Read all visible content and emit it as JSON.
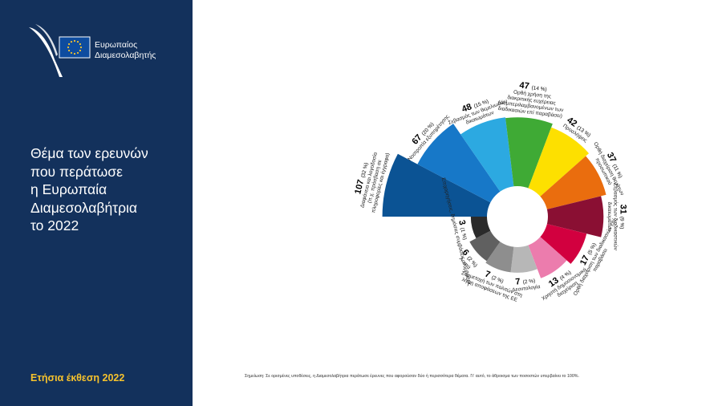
{
  "logo": {
    "line1": "Ευρωπαίος",
    "line2": "Διαμεσολαβητής"
  },
  "title_lines": [
    "Θέμα των ερευνών",
    "που περάτωσε",
    "η Ευρωπαία",
    "Διαμεσολαβήτρια",
    "το 2022"
  ],
  "footer_label": "Ετήσια έκθεση 2022",
  "note": "Σημείωση: Σε ορισμένες υποθέσεις, η Διαμεσολαβήτρια περάτωσε έρευνες που αφορούσαν δύο ή περισσότερα θέματα. Γι' αυτό, το άθροισμα των ποσοστών υπερβαίνει το 100%.",
  "colors": {
    "sidebar": "#13315c",
    "accent": "#f6c22d"
  },
  "chart_data": {
    "type": "polar-bar",
    "series": [
      {
        "value": 107,
        "pct": "(32 %)",
        "label_lines": [
          "Διαφάνεια και λογοδοσία",
          "(π.χ. πρόσβαση σε",
          "πληροφορίες και έγγραφα)"
        ],
        "color": "#0b5394"
      },
      {
        "value": 67,
        "pct": "(20 %)",
        "label_lines": [
          "Νοοτροπία εξυπηρέτησης"
        ],
        "color": "#1778c8"
      },
      {
        "value": 48,
        "pct": "(15 %)",
        "label_lines": [
          "Σεβασμός των θεμελιωδών",
          "δικαιωμάτων"
        ],
        "color": "#2ca9e1"
      },
      {
        "value": 47,
        "pct": "(14 %)",
        "label_lines": [
          "Ορθή χρήση της",
          "διακριτικής ευχέρειας",
          "(συμπεριλαμβανομένων των",
          "διαδικασιών επί παραβάσει)"
        ],
        "color": "#3faa35"
      },
      {
        "value": 42,
        "pct": "(13 %)",
        "label_lines": [
          "Προσλήψεις"
        ],
        "color": "#fde000"
      },
      {
        "value": 37,
        "pct": "(11 %)",
        "label_lines": [
          "Ορθή διαχείριση θεμάτων",
          "προσωπικού"
        ],
        "color": "#ea6d0e"
      },
      {
        "value": 31,
        "pct": "(9 %)",
        "label_lines": [
          "Σεβασμός των διαδικαστικών",
          "δικαιωμάτων"
        ],
        "color": "#8a0f33"
      },
      {
        "value": 17,
        "pct": "(5 %)",
        "label_lines": [
          "Ορθή διαχείριση των διαδικασιών επί",
          "παραβάσει"
        ],
        "color": "#d2003f"
      },
      {
        "value": 13,
        "pct": "(4 %)",
        "label_lines": [
          "Χρηστή δημοσιονομική",
          "διαχείριση"
        ],
        "color": "#ec7cad"
      },
      {
        "value": 7,
        "pct": "(2 %)",
        "label_lines": [
          "Δεοντολογία"
        ],
        "color": "#b7b7b7"
      },
      {
        "value": 7,
        "pct": "(2 %)",
        "label_lines": [
          "Συμμετοχή των πολιτών στη",
          "λήψη αποφάσεων της ΕΕ"
        ],
        "color": "#8e8e8e"
      },
      {
        "value": 6,
        "pct": "(2 %)",
        "label_lines": [
          "Λοιπά"
        ],
        "color": "#606060"
      },
      {
        "value": 3,
        "pct": "(1 %)",
        "label_lines": [
          "Επιχορηγήσεις, δημόσιες συμβάσεις, συμβάσεις"
        ],
        "color": "#2b2b2b"
      }
    ]
  }
}
